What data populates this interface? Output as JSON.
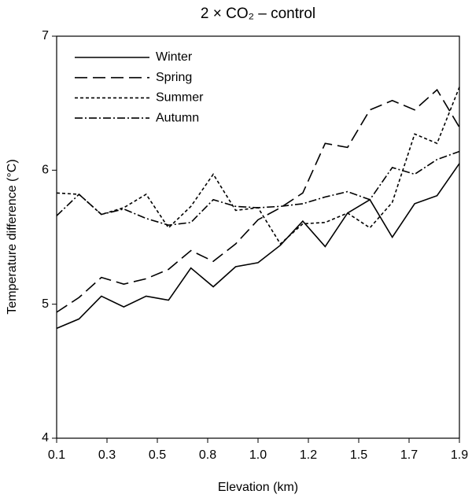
{
  "chart_data": {
    "type": "line",
    "title": "2 × CO₂ – control",
    "xlabel": "Elevation (km)",
    "ylabel": "Temperature difference (°C)",
    "x": [
      0.1,
      0.2,
      0.3,
      0.4,
      0.5,
      0.6,
      0.7,
      0.8,
      0.9,
      1.0,
      1.1,
      1.2,
      1.3,
      1.4,
      1.5,
      1.6,
      1.7,
      1.8,
      1.9
    ],
    "series": [
      {
        "name": "Winter",
        "color": "#000000",
        "dash": "none",
        "values": [
          4.82,
          4.89,
          5.06,
          4.98,
          5.06,
          5.03,
          5.27,
          5.13,
          5.28,
          5.31,
          5.44,
          5.62,
          5.43,
          5.68,
          5.78,
          5.5,
          5.75,
          5.81,
          6.05
        ]
      },
      {
        "name": "Spring",
        "color": "#000000",
        "dash": "16 7",
        "values": [
          4.94,
          5.05,
          5.2,
          5.15,
          5.19,
          5.26,
          5.4,
          5.32,
          5.45,
          5.63,
          5.72,
          5.83,
          6.2,
          6.17,
          6.45,
          6.52,
          6.45,
          6.6,
          6.32
        ]
      },
      {
        "name": "Summer",
        "color": "#000000",
        "dash": "4 3",
        "values": [
          5.83,
          5.82,
          5.67,
          5.72,
          5.82,
          5.57,
          5.73,
          5.97,
          5.7,
          5.72,
          5.45,
          5.6,
          5.61,
          5.68,
          5.57,
          5.76,
          6.27,
          6.2,
          6.62
        ]
      },
      {
        "name": "Autumn",
        "color": "#000000",
        "dash": "10 3 2 3",
        "values": [
          5.66,
          5.82,
          5.67,
          5.71,
          5.64,
          5.59,
          5.61,
          5.78,
          5.73,
          5.72,
          5.73,
          5.75,
          5.8,
          5.84,
          5.78,
          6.02,
          5.97,
          6.08,
          6.14
        ]
      }
    ],
    "xlim": [
      0.1,
      1.9
    ],
    "xticks": [
      0.1,
      {
        "value": 0.325,
        "label": "0.3"
      },
      {
        "value": 0.55,
        "label": "0.5"
      },
      {
        "value": 0.775,
        "label": "0.8"
      },
      {
        "value": 1.0,
        "label": "1.0"
      },
      {
        "value": 1.225,
        "label": "1.2"
      },
      {
        "value": 1.45,
        "label": "1.5"
      },
      {
        "value": 1.675,
        "label": "1.7"
      },
      1.9
    ],
    "ylim": [
      4,
      7
    ],
    "yticks": [
      4,
      5,
      6,
      7
    ],
    "grid": false,
    "legend": "upper left"
  }
}
